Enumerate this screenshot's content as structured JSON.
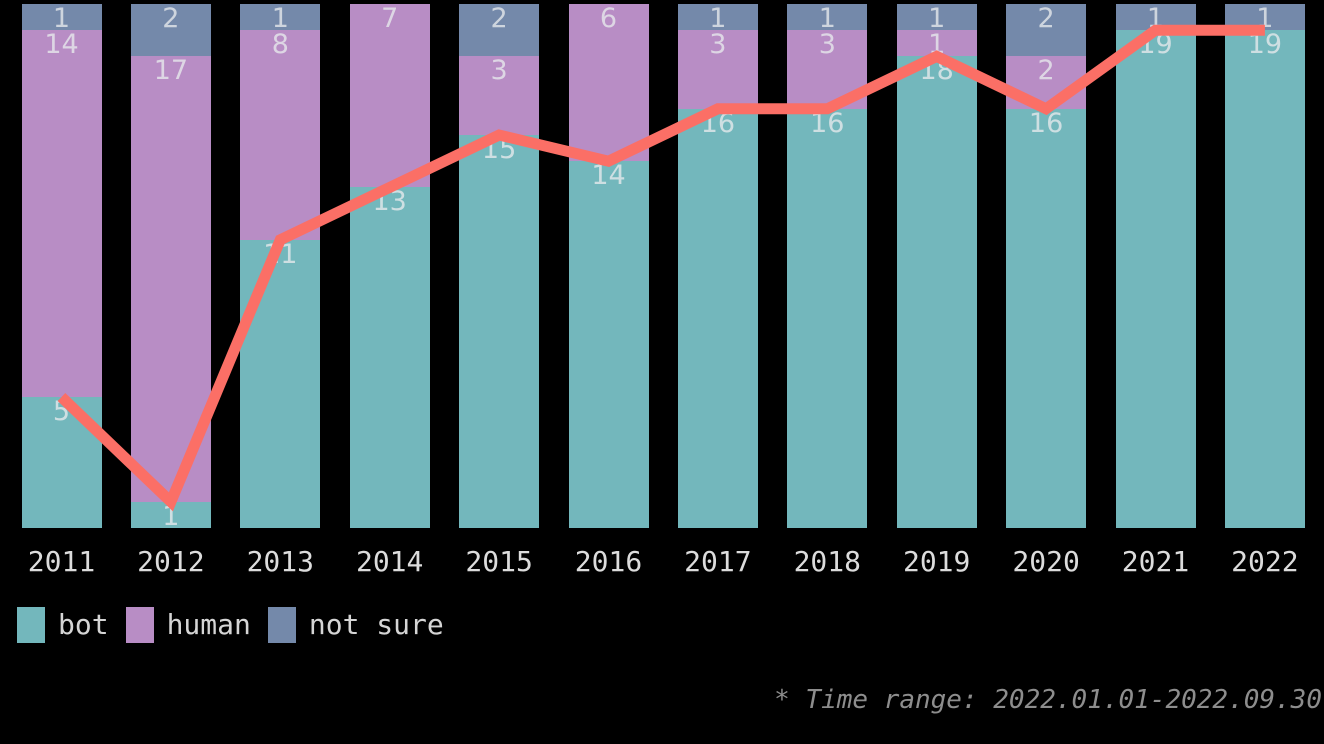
{
  "chart_data": {
    "type": "bar",
    "subtype": "stacked-bars-with-line-overlay",
    "categories": [
      "2011",
      "2012",
      "2013",
      "2014",
      "2015",
      "2016",
      "2017",
      "2018",
      "2019",
      "2020",
      "2021",
      "2022"
    ],
    "series": [
      {
        "name": "bot",
        "color": "#73b7bc",
        "values": [
          5,
          1,
          11,
          13,
          15,
          14,
          16,
          16,
          18,
          16,
          19,
          19
        ]
      },
      {
        "name": "human",
        "color": "#b88dc5",
        "values": [
          14,
          17,
          8,
          7,
          3,
          6,
          3,
          3,
          1,
          2,
          0,
          0
        ]
      },
      {
        "name": "not sure",
        "color": "#7489aa",
        "values": [
          1,
          2,
          1,
          0,
          2,
          0,
          1,
          1,
          1,
          2,
          1,
          1
        ]
      }
    ],
    "stack_order_bottom_to_top": [
      "bot",
      "human",
      "not sure"
    ],
    "line_series": {
      "name": "bot",
      "color": "#fb6f66",
      "values": [
        5,
        1,
        11,
        13,
        15,
        14,
        16,
        16,
        18,
        16,
        19,
        19
      ]
    },
    "ylim": [
      0,
      20
    ],
    "grid": false,
    "value_labels_shown": true,
    "legend": {
      "position": "bottom-left",
      "entries": [
        "bot",
        "human",
        "not sure"
      ]
    },
    "title": "",
    "xlabel": "",
    "ylabel": "",
    "footnote": "* Time range: 2022.01.01-2022.09.30"
  },
  "colors": {
    "background": "#000000",
    "bot": "#73b7bc",
    "human": "#b88dc5",
    "not_sure": "#7489aa",
    "line": "#fb6f66",
    "axis_text": "#dcdcdc",
    "value_label_text": "#e8ebed",
    "legend_text": "#d5d5d5",
    "footnote_text": "#8d8d8d"
  }
}
